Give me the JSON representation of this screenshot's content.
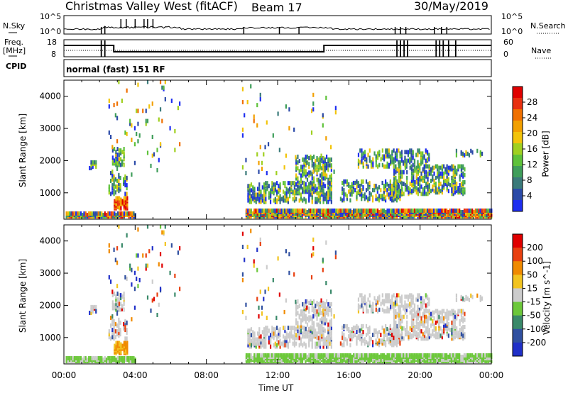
{
  "header": {
    "title": "Christmas Valley West (fitACF)",
    "beam": "Beam 17",
    "date": "30/May/2019",
    "cpid_label": "CPID",
    "cpid_value": "normal (fast) 151 RF"
  },
  "strip_labels": {
    "nsky": "N.Sky",
    "freq_line1": "Freq.",
    "freq_line2": "[MHz]",
    "nsearch": "N.Search",
    "nave": "Nave",
    "left_ticks_top": [
      "10^5",
      "10^0"
    ],
    "left_ticks_mid": [
      "18",
      "8"
    ],
    "right_ticks_top": [
      "10^5",
      "10^0"
    ],
    "right_ticks_mid": [
      "60",
      "0"
    ]
  },
  "chart_data": [
    {
      "type": "heatmap",
      "title": "",
      "ylabel": "Slant Range [km]",
      "xlabel": "",
      "ylim": [
        180,
        4500
      ],
      "yticks": [
        "1000",
        "2000",
        "3000",
        "4000"
      ],
      "colorbar": {
        "label": "Power [dB]",
        "ticks": [
          "4",
          "8",
          "12",
          "16",
          "20",
          "24",
          "28"
        ],
        "colors": [
          "#1e2ef0",
          "#2b4aa8",
          "#3a7a7a",
          "#3f9e5a",
          "#5ec23a",
          "#a0d020",
          "#f2c40a",
          "#f2a000",
          "#f07000",
          "#e83010",
          "#e00000"
        ]
      }
    },
    {
      "type": "heatmap",
      "title": "",
      "ylabel": "Slant Range [km]",
      "xlabel": "Time UT",
      "ylim": [
        180,
        4500
      ],
      "yticks": [
        "1000",
        "2000",
        "3000",
        "4000"
      ],
      "xticks": [
        "00:00",
        "04:00",
        "08:00",
        "12:00",
        "16:00",
        "20:00",
        "00:00"
      ],
      "colorbar": {
        "label": "Velocity [m s^-1]",
        "ticks": [
          "200",
          "100",
          "50",
          "15",
          "-15",
          "-50",
          "-100",
          "-200"
        ],
        "colors": [
          "#2030c8",
          "#3050a0",
          "#3a8a6a",
          "#6cc83a",
          "#cccccc",
          "#f2c420",
          "#f08a00",
          "#e84010",
          "#e00000"
        ]
      }
    }
  ]
}
